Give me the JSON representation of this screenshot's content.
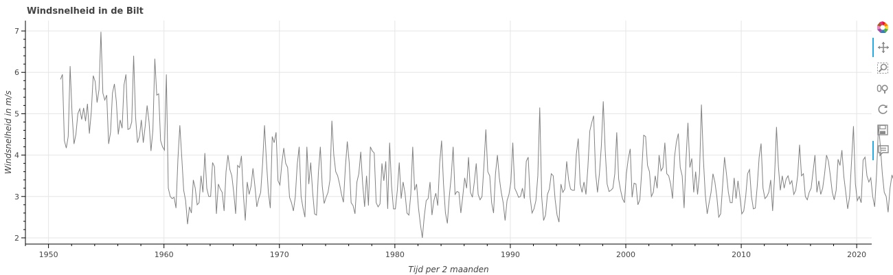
{
  "title": "Windsnelheid in de Bilt",
  "chart_data": {
    "type": "line",
    "title": "Windsnelheid in de Bilt",
    "xlabel": "Tijd per 2 maanden",
    "ylabel": "Windsnelheid in m/s",
    "xlim": [
      1948,
      2021.3
    ],
    "ylim": [
      1.85,
      7.25
    ],
    "x_ticks": [
      1950,
      1960,
      1970,
      1980,
      1990,
      2000,
      2010,
      2020
    ],
    "y_ticks": [
      2,
      3,
      4,
      5,
      6,
      7
    ],
    "grid": true,
    "line_color": "#808080",
    "x_start": 1951.04,
    "x_step": 0.1667,
    "series": [
      {
        "values": [
          5.83,
          5.95,
          4.35,
          4.17,
          4.45,
          6.15,
          5.0,
          4.27,
          4.5,
          5.0,
          5.12,
          4.86,
          5.14,
          4.82,
          5.24,
          4.52,
          5.05,
          5.92,
          5.78,
          5.27,
          5.58,
          6.98,
          5.5,
          5.33,
          5.45,
          4.27,
          4.55,
          5.5,
          5.72,
          5.3,
          4.5,
          4.85,
          4.65,
          5.7,
          5.95,
          4.62,
          4.64,
          4.8,
          6.4,
          4.92,
          4.3,
          4.45,
          4.85,
          4.3,
          4.7,
          5.2,
          4.8,
          4.1,
          4.6,
          6.33,
          5.45,
          5.48,
          4.35,
          4.2,
          4.12,
          5.95,
          3.2,
          3.0,
          2.95,
          2.98,
          2.72,
          3.9,
          4.72,
          3.95,
          3.15,
          2.9,
          2.33,
          2.75,
          2.6,
          3.4,
          3.2,
          2.8,
          2.85,
          3.5,
          3.1,
          4.05,
          3.2,
          3.0,
          3.0,
          3.82,
          3.72,
          2.58,
          3.3,
          3.18,
          3.1,
          2.65,
          3.6,
          4.0,
          3.65,
          3.5,
          3.1,
          2.58,
          3.75,
          3.7,
          3.98,
          3.05,
          2.42,
          3.35,
          3.05,
          3.25,
          3.68,
          3.25,
          2.75,
          2.95,
          3.1,
          3.8,
          4.72,
          3.85,
          3.1,
          2.72,
          4.45,
          4.3,
          4.55,
          3.38,
          3.28,
          3.8,
          4.17,
          3.8,
          3.7,
          2.98,
          2.85,
          2.65,
          3.0,
          3.78,
          4.2,
          3.0,
          2.72,
          2.5,
          4.2,
          3.3,
          3.82,
          3.1,
          2.58,
          2.55,
          3.58,
          4.2,
          3.25,
          2.83,
          2.98,
          3.1,
          3.4,
          4.83,
          4.0,
          3.6,
          3.5,
          3.3,
          3.05,
          2.86,
          3.7,
          4.33,
          3.82,
          2.85,
          2.78,
          2.58,
          3.35,
          3.55,
          4.08,
          3.3,
          2.75,
          3.5,
          2.78,
          4.2,
          4.1,
          4.05,
          2.85,
          2.75,
          2.82,
          3.8,
          3.38,
          3.85,
          2.7,
          4.3,
          3.25,
          2.7,
          2.7,
          3.15,
          3.82,
          2.95,
          3.35,
          3.08,
          2.6,
          2.55,
          3.05,
          4.2,
          3.15,
          3.3,
          2.72,
          2.32,
          2.0,
          2.52,
          2.9,
          2.95,
          3.35,
          2.55,
          2.9,
          3.08,
          2.78,
          3.8,
          4.35,
          3.3,
          2.6,
          2.35,
          3.0,
          3.48,
          4.2,
          3.05,
          3.12,
          3.1,
          2.6,
          3.0,
          3.45,
          3.2,
          3.95,
          3.1,
          2.98,
          3.35,
          3.8,
          3.05,
          2.92,
          3.0,
          3.75,
          4.62,
          3.6,
          3.5,
          2.85,
          2.6,
          3.55,
          4.0,
          3.45,
          3.1,
          2.85,
          2.42,
          2.9,
          3.05,
          3.35,
          4.3,
          3.2,
          3.1,
          2.98,
          3.0,
          3.2,
          2.95,
          3.85,
          3.95,
          2.98,
          2.6,
          2.7,
          2.9,
          3.5,
          5.15,
          3.0,
          2.42,
          2.55,
          3.05,
          3.18,
          3.55,
          3.5,
          2.92,
          2.55,
          2.38,
          3.3,
          3.1,
          3.18,
          3.85,
          3.4,
          3.18,
          3.15,
          3.15,
          4.02,
          4.4,
          3.3,
          3.1,
          3.35,
          3.05,
          3.7,
          4.58,
          4.78,
          4.95,
          3.58,
          3.1,
          3.55,
          4.22,
          5.3,
          4.12,
          3.3,
          3.12,
          3.15,
          3.2,
          3.55,
          4.55,
          3.42,
          3.15,
          2.95,
          2.85,
          3.55,
          3.92,
          4.15,
          2.98,
          3.32,
          3.3,
          2.8,
          2.92,
          3.62,
          4.48,
          4.45,
          3.75,
          3.6,
          3.0,
          3.1,
          3.5,
          3.2,
          4.0,
          3.62,
          3.7,
          4.3,
          3.55,
          3.5,
          3.3,
          2.95,
          3.95,
          4.32,
          4.52,
          3.7,
          3.5,
          2.72,
          3.9,
          4.78,
          3.7,
          3.92,
          3.1,
          3.6,
          3.05,
          3.55,
          5.22,
          3.92,
          3.05,
          2.58,
          2.85,
          3.1,
          3.55,
          3.35,
          3.0,
          2.5,
          2.58,
          3.25,
          3.95,
          3.55,
          3.1,
          2.85,
          2.85,
          3.45,
          2.95,
          3.38,
          3.0,
          2.58,
          2.65,
          3.0,
          3.55,
          3.65,
          3.0,
          2.7,
          2.72,
          3.25,
          3.95,
          4.28,
          3.2,
          2.95,
          3.0,
          3.1,
          3.4,
          2.65,
          3.48,
          4.68,
          3.72,
          3.15,
          3.5,
          3.2,
          3.42,
          3.5,
          3.3,
          3.38,
          3.05,
          3.15,
          3.5,
          4.25,
          3.5,
          3.55,
          3.0,
          2.92,
          3.1,
          3.2,
          3.6,
          4.0,
          3.1,
          3.38,
          3.05,
          3.2,
          3.55,
          4.0,
          3.85,
          3.5,
          3.1,
          2.92,
          3.15,
          3.9,
          3.75,
          4.12,
          3.48,
          3.1,
          2.7,
          3.0,
          3.85,
          4.7,
          3.3,
          2.9,
          3.0,
          2.85,
          3.88,
          3.95,
          3.5,
          3.35,
          3.45,
          3.0,
          2.75,
          3.55,
          4.72,
          4.2,
          3.55,
          3.1,
          3.0,
          2.62,
          3.2,
          3.52,
          3.38,
          3.2,
          2.7,
          3.35,
          3.48
        ]
      }
    ]
  },
  "toolbar": {
    "items": [
      {
        "name": "bokeh-logo-icon",
        "active": false
      },
      {
        "name": "pan-icon",
        "active": true
      },
      {
        "name": "box-zoom-icon",
        "active": false
      },
      {
        "name": "wheel-zoom-icon",
        "active": false
      },
      {
        "name": "reset-icon",
        "active": false
      },
      {
        "name": "save-icon",
        "active": false
      },
      {
        "name": "hover-icon",
        "active": true
      }
    ]
  }
}
